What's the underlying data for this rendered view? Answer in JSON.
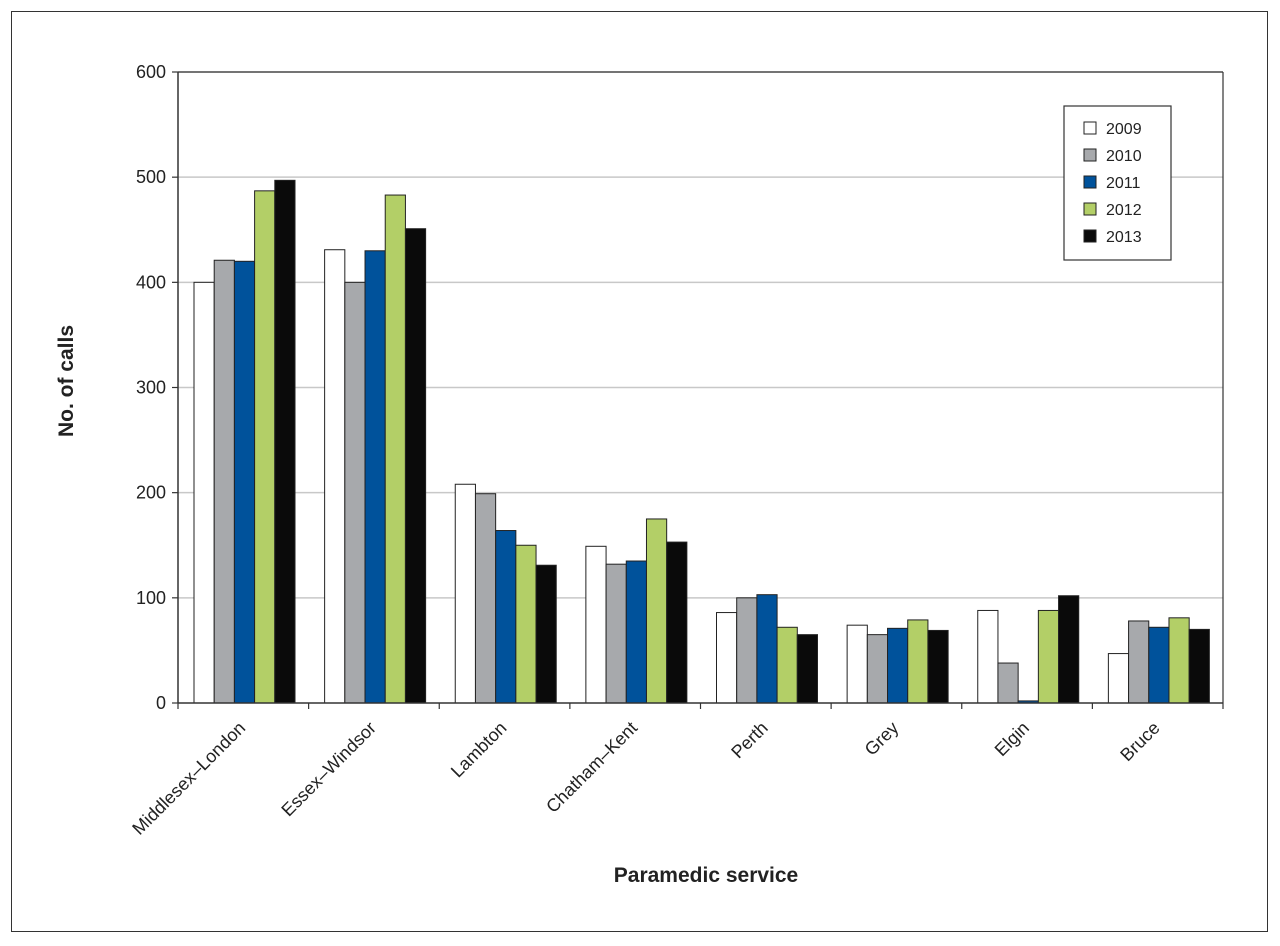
{
  "chart_data": {
    "type": "bar",
    "xlabel": "Paramedic service",
    "ylabel": "No. of calls",
    "ylim": [
      0,
      600
    ],
    "yticks": [
      0,
      100,
      200,
      300,
      400,
      500,
      600
    ],
    "grid": true,
    "legend_position": "top-right",
    "categories": [
      "Middlesex–London",
      "Essex–Windsor",
      "Lambton",
      "Chatham–Kent",
      "Perth",
      "Grey",
      "Elgin",
      "Bruce"
    ],
    "series": [
      {
        "name": "2009",
        "color": "#ffffff",
        "values": [
          400,
          431,
          208,
          149,
          86,
          74,
          88,
          47
        ]
      },
      {
        "name": "2010",
        "color": "#a7a9ac",
        "values": [
          421,
          400,
          199,
          132,
          100,
          65,
          38,
          78
        ]
      },
      {
        "name": "2011",
        "color": "#00529b",
        "values": [
          420,
          430,
          164,
          135,
          103,
          71,
          2,
          72
        ]
      },
      {
        "name": "2012",
        "color": "#b3cf67",
        "values": [
          487,
          483,
          150,
          175,
          72,
          79,
          88,
          81
        ]
      },
      {
        "name": "2013",
        "color": "#0a0a0a",
        "values": [
          497,
          451,
          131,
          153,
          65,
          69,
          102,
          70
        ]
      }
    ]
  }
}
